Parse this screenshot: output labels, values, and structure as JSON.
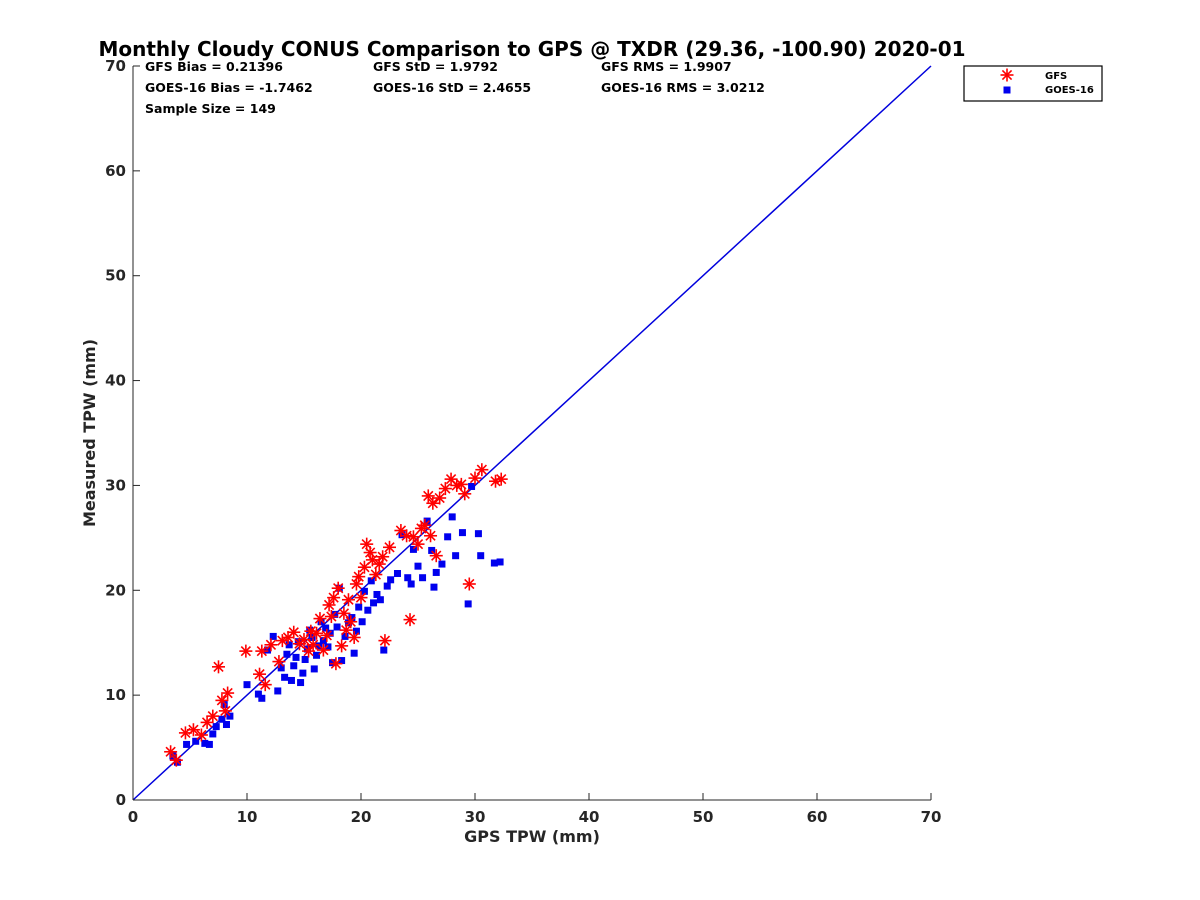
{
  "chart_data": {
    "type": "scatter",
    "title": "Monthly Cloudy CONUS Comparison to GPS @ TXDR (29.36, -100.90) 2020-01",
    "xlabel": "GPS TPW (mm)",
    "ylabel": "Measured TPW (mm)",
    "xlim": [
      0,
      70
    ],
    "ylim": [
      0,
      70
    ],
    "xticks": [
      "0",
      "10",
      "20",
      "30",
      "40",
      "50",
      "60",
      "70"
    ],
    "yticks": [
      "0",
      "10",
      "20",
      "30",
      "40",
      "50",
      "60",
      "70"
    ],
    "grid": false,
    "legend_position": "top-right",
    "stats": [
      "GFS Bias = 0.21396",
      "GFS StD = 1.9792",
      "GFS RMS = 1.9907",
      "GOES-16 Bias = -1.7462",
      "GOES-16 StD = 2.4655",
      "GOES-16 RMS = 3.0212",
      "Sample Size = 149"
    ],
    "reference_line": {
      "x": [
        0,
        70
      ],
      "y": [
        0,
        70
      ],
      "color": "#0000dd"
    },
    "series": [
      {
        "name": "GFS",
        "marker": "asterisk",
        "color": "#ff0000",
        "points": [
          [
            3.3,
            4.6
          ],
          [
            3.8,
            3.8
          ],
          [
            4.6,
            6.4
          ],
          [
            5.3,
            6.7
          ],
          [
            6.0,
            6.2
          ],
          [
            6.5,
            7.4
          ],
          [
            7.0,
            8.0
          ],
          [
            7.5,
            12.7
          ],
          [
            7.8,
            9.5
          ],
          [
            8.1,
            8.5
          ],
          [
            8.3,
            10.2
          ],
          [
            9.9,
            14.2
          ],
          [
            11.1,
            12.0
          ],
          [
            11.3,
            14.2
          ],
          [
            11.6,
            11.0
          ],
          [
            12.1,
            14.8
          ],
          [
            12.8,
            13.2
          ],
          [
            13.1,
            15.2
          ],
          [
            13.6,
            15.5
          ],
          [
            14.1,
            16.0
          ],
          [
            14.6,
            14.9
          ],
          [
            15.0,
            15.3
          ],
          [
            15.4,
            14.2
          ],
          [
            15.6,
            16.1
          ],
          [
            15.8,
            14.8
          ],
          [
            16.1,
            15.9
          ],
          [
            16.4,
            17.3
          ],
          [
            16.7,
            14.3
          ],
          [
            17.0,
            15.7
          ],
          [
            17.2,
            18.6
          ],
          [
            17.4,
            17.5
          ],
          [
            17.6,
            19.3
          ],
          [
            17.8,
            13.0
          ],
          [
            18.0,
            20.2
          ],
          [
            18.3,
            14.7
          ],
          [
            18.5,
            17.8
          ],
          [
            18.7,
            16.2
          ],
          [
            18.9,
            19.1
          ],
          [
            19.1,
            17.0
          ],
          [
            19.4,
            15.5
          ],
          [
            19.6,
            20.6
          ],
          [
            19.8,
            21.3
          ],
          [
            20.0,
            19.3
          ],
          [
            20.3,
            22.2
          ],
          [
            20.5,
            24.4
          ],
          [
            20.8,
            23.6
          ],
          [
            21.0,
            22.9
          ],
          [
            21.3,
            21.5
          ],
          [
            21.6,
            22.5
          ],
          [
            21.9,
            23.2
          ],
          [
            22.1,
            15.2
          ],
          [
            22.5,
            24.1
          ],
          [
            23.5,
            25.7
          ],
          [
            24.0,
            25.2
          ],
          [
            24.3,
            17.2
          ],
          [
            24.6,
            25.1
          ],
          [
            25.0,
            24.4
          ],
          [
            25.3,
            25.9
          ],
          [
            25.6,
            26.2
          ],
          [
            25.9,
            29.0
          ],
          [
            26.1,
            25.2
          ],
          [
            26.3,
            28.3
          ],
          [
            26.6,
            23.3
          ],
          [
            26.9,
            28.8
          ],
          [
            27.4,
            29.7
          ],
          [
            27.9,
            30.6
          ],
          [
            28.4,
            30.0
          ],
          [
            28.8,
            30.1
          ],
          [
            29.1,
            29.2
          ],
          [
            29.5,
            20.6
          ],
          [
            30.0,
            30.7
          ],
          [
            30.6,
            31.5
          ],
          [
            31.8,
            30.4
          ],
          [
            32.3,
            30.6
          ]
        ]
      },
      {
        "name": "GOES-16",
        "marker": "square",
        "color": "#0000ee",
        "points": [
          [
            3.5,
            4.2
          ],
          [
            3.9,
            3.6
          ],
          [
            4.7,
            5.3
          ],
          [
            5.5,
            5.6
          ],
          [
            6.3,
            5.4
          ],
          [
            6.7,
            5.3
          ],
          [
            7.0,
            6.3
          ],
          [
            7.3,
            7.0
          ],
          [
            7.8,
            7.7
          ],
          [
            8.0,
            9.1
          ],
          [
            8.2,
            7.2
          ],
          [
            8.5,
            8.0
          ],
          [
            10.0,
            11.0
          ],
          [
            11.0,
            10.1
          ],
          [
            11.3,
            9.7
          ],
          [
            11.8,
            14.3
          ],
          [
            12.3,
            15.6
          ],
          [
            12.7,
            10.4
          ],
          [
            13.0,
            12.6
          ],
          [
            13.3,
            11.7
          ],
          [
            13.5,
            13.9
          ],
          [
            13.7,
            14.8
          ],
          [
            13.9,
            11.4
          ],
          [
            14.1,
            12.8
          ],
          [
            14.3,
            13.6
          ],
          [
            14.5,
            15.1
          ],
          [
            14.7,
            11.2
          ],
          [
            14.9,
            12.1
          ],
          [
            15.1,
            13.4
          ],
          [
            15.3,
            14.4
          ],
          [
            15.5,
            16.2
          ],
          [
            15.7,
            15.5
          ],
          [
            15.9,
            12.5
          ],
          [
            16.1,
            13.8
          ],
          [
            16.3,
            14.7
          ],
          [
            16.5,
            17.0
          ],
          [
            16.7,
            15.2
          ],
          [
            16.9,
            16.4
          ],
          [
            17.1,
            14.6
          ],
          [
            17.3,
            15.9
          ],
          [
            17.5,
            13.1
          ],
          [
            17.7,
            17.7
          ],
          [
            17.9,
            16.5
          ],
          [
            18.1,
            20.2
          ],
          [
            18.3,
            13.3
          ],
          [
            18.6,
            15.6
          ],
          [
            18.9,
            16.9
          ],
          [
            19.2,
            17.4
          ],
          [
            19.4,
            14.0
          ],
          [
            19.6,
            16.1
          ],
          [
            19.8,
            18.4
          ],
          [
            20.1,
            17.0
          ],
          [
            20.3,
            19.9
          ],
          [
            20.6,
            18.1
          ],
          [
            20.9,
            20.9
          ],
          [
            21.1,
            18.8
          ],
          [
            21.4,
            19.6
          ],
          [
            21.7,
            19.1
          ],
          [
            22.0,
            14.3
          ],
          [
            22.3,
            20.4
          ],
          [
            22.6,
            21.0
          ],
          [
            23.2,
            21.6
          ],
          [
            23.6,
            25.3
          ],
          [
            24.1,
            21.2
          ],
          [
            24.4,
            20.6
          ],
          [
            24.6,
            23.9
          ],
          [
            25.0,
            22.3
          ],
          [
            25.4,
            21.2
          ],
          [
            25.8,
            26.6
          ],
          [
            26.2,
            23.8
          ],
          [
            26.4,
            20.3
          ],
          [
            26.6,
            21.7
          ],
          [
            27.1,
            22.5
          ],
          [
            27.6,
            25.1
          ],
          [
            28.0,
            27.0
          ],
          [
            28.3,
            23.3
          ],
          [
            28.9,
            25.5
          ],
          [
            29.4,
            18.7
          ],
          [
            29.7,
            29.9
          ],
          [
            30.3,
            25.4
          ],
          [
            30.5,
            23.3
          ],
          [
            31.7,
            22.6
          ],
          [
            32.2,
            22.7
          ]
        ]
      }
    ]
  }
}
